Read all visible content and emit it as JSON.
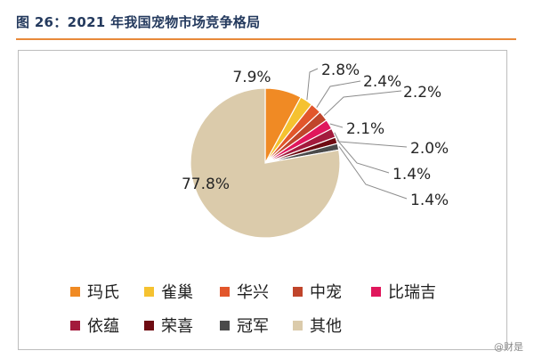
{
  "figure_title": "图 26：2021 年我国宠物市场竞争格局",
  "watermark": "@财是",
  "chart_data": {
    "type": "pie",
    "title": "",
    "slices": [
      {
        "name": "玛氏",
        "value": 7.9,
        "label": "7.9%",
        "color": "#f08a24"
      },
      {
        "name": "雀巢",
        "value": 2.8,
        "label": "2.8%",
        "color": "#f5c230"
      },
      {
        "name": "华兴",
        "value": 2.4,
        "label": "2.4%",
        "color": "#e2562b"
      },
      {
        "name": "中宠",
        "value": 2.2,
        "label": "2.2%",
        "color": "#c0452b"
      },
      {
        "name": "比瑞吉",
        "value": 2.1,
        "label": "2.1%",
        "color": "#e0175c"
      },
      {
        "name": "依蕴",
        "value": 2.0,
        "label": "2.0%",
        "color": "#a31a3c"
      },
      {
        "name": "荣喜",
        "value": 1.4,
        "label": "1.4%",
        "color": "#6e0b12"
      },
      {
        "name": "冠军",
        "value": 1.4,
        "label": "1.4%",
        "color": "#4a4a4a"
      },
      {
        "name": "其他",
        "value": 77.8,
        "label": "77.8%",
        "color": "#dbcbab"
      }
    ],
    "legend_position": "bottom"
  }
}
